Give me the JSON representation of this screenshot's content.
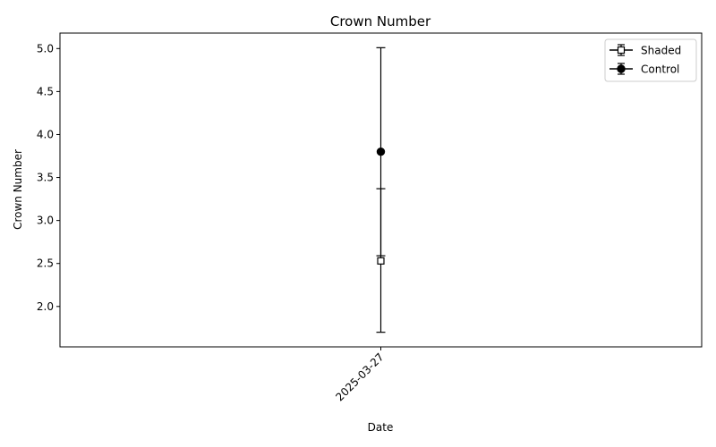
{
  "chart_data": {
    "type": "scatter",
    "title": "Crown Number",
    "xlabel": "Date",
    "ylabel": "Crown Number",
    "x_categories": [
      "2025-03-27"
    ],
    "xlim": [
      -1,
      1
    ],
    "ylim": [
      1.53,
      5.18
    ],
    "yticks": [
      2.0,
      2.5,
      3.0,
      3.5,
      4.0,
      4.5,
      5.0
    ],
    "ytick_labels": [
      "2.0",
      "2.5",
      "3.0",
      "3.5",
      "4.0",
      "4.5",
      "5.0"
    ],
    "grid": false,
    "legend_position": "top-right",
    "series": [
      {
        "name": "Shaded",
        "marker": "square-open",
        "color": "#000000",
        "points": [
          {
            "x": "2025-03-27",
            "y": 2.53,
            "err_low": 1.7,
            "err_high": 3.37
          }
        ]
      },
      {
        "name": "Control",
        "marker": "circle-filled",
        "color": "#000000",
        "points": [
          {
            "x": "2025-03-27",
            "y": 3.8,
            "err_low": 2.59,
            "err_high": 5.01
          }
        ]
      }
    ]
  }
}
